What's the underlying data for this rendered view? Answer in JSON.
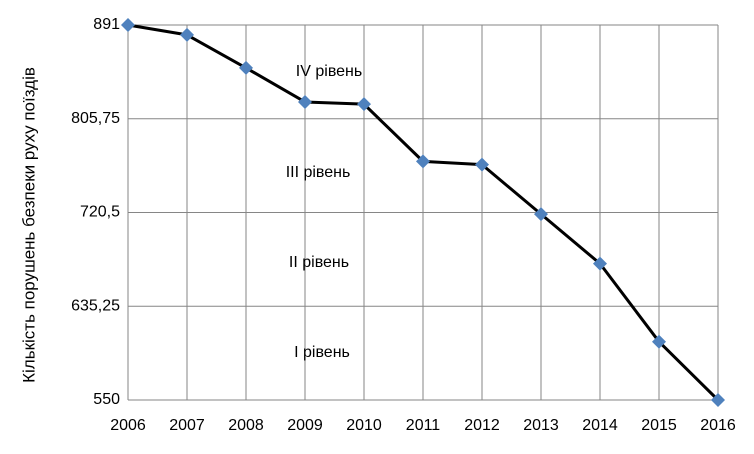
{
  "chart_data": {
    "type": "line",
    "y_label": "Кількість порушень безпеки руху поїздів",
    "categories": [
      "2006",
      "2007",
      "2008",
      "2009",
      "2010",
      "2011",
      "2012",
      "2013",
      "2014",
      "2015",
      "2016"
    ],
    "series": [
      {
        "name": "Кількість порушень",
        "color": "#000000",
        "marker_color": "#4f81bd",
        "values": [
          891,
          882,
          852,
          821,
          819,
          767,
          764,
          719,
          674,
          603,
          550
        ]
      }
    ],
    "ylim": [
      550,
      891
    ],
    "yticks": [
      550,
      {
        "value": 635.25,
        "label": "635,25"
      },
      {
        "value": 720.5,
        "label": "720,5"
      },
      {
        "value": 805.75,
        "label": "805,75"
      },
      891
    ],
    "grid": true,
    "annotations": [
      "IV рівень",
      "III рівень",
      "II рівень",
      "I рівень"
    ]
  }
}
